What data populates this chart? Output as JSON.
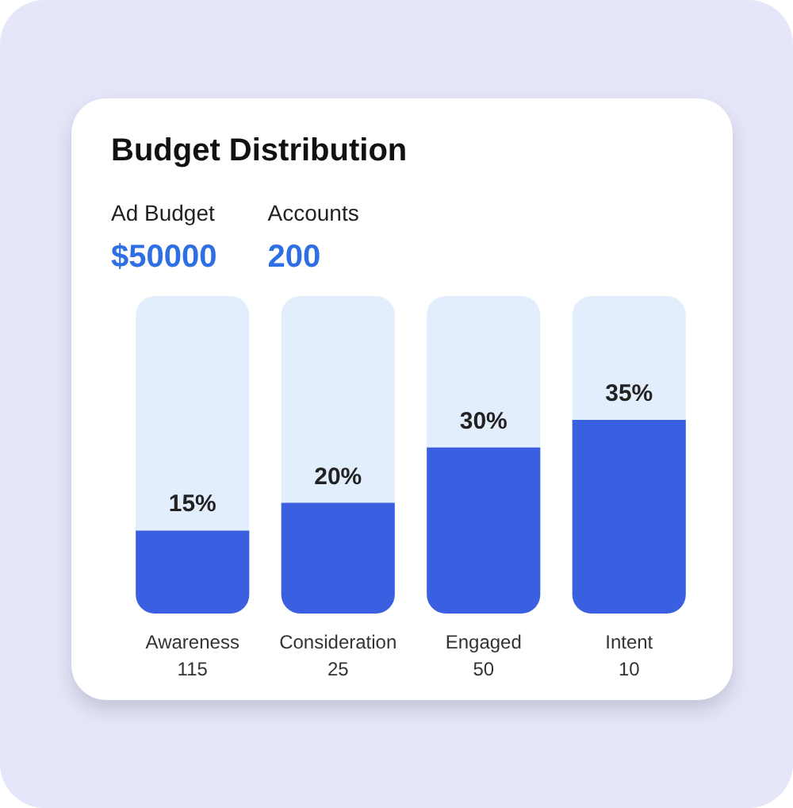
{
  "chart_data": {
    "type": "bar",
    "title": "Budget Distribution",
    "annotations": [
      "Ad Budget",
      "$50000",
      "Accounts",
      "200"
    ],
    "categories": [
      "Awareness\n115",
      "Consideration\n25",
      "Engaged\n50",
      "Intent\n10"
    ],
    "values": [
      15,
      20,
      30,
      35
    ],
    "value_labels": [
      "15%",
      "20%",
      "30%",
      "35%"
    ],
    "color": "#3a5fe0",
    "grid": false,
    "tick_labels": "x"
  }
}
